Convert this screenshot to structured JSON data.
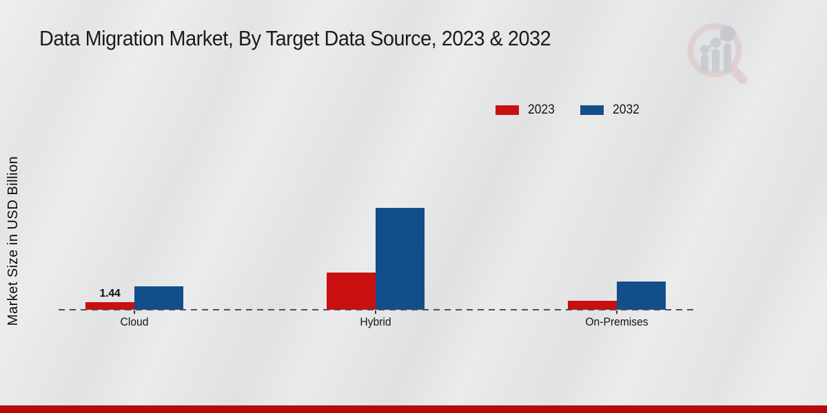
{
  "title": "Data Migration Market, By Target Data Source, 2023 & 2032",
  "colors": {
    "series_2023_red": "#c90f10",
    "series_2032_blue": "#124f8a",
    "footer_red": "#b70b0b",
    "title_text": "#1b1b1b",
    "dashed_baseline": "#4f4f4f"
  },
  "logo": {
    "name": "market-research-future-watermark"
  },
  "chart_data": {
    "type": "bar",
    "title": "Data Migration Market, By Target Data Source, 2023 & 2032",
    "xlabel": "",
    "ylabel": "Market Size in USD Billion",
    "categories": [
      "Cloud",
      "Hybrid",
      "On-Premises"
    ],
    "series": [
      {
        "name": "2023",
        "color": "#c90f10",
        "values": [
          1.44,
          7.05,
          1.74
        ]
      },
      {
        "name": "2032",
        "color": "#124f8a",
        "values": [
          4.45,
          19.3,
          5.3
        ]
      }
    ],
    "annotations": [
      {
        "series": "2023",
        "category": "Cloud",
        "text": "1.44"
      }
    ],
    "ylim": [
      0,
      20
    ],
    "grid": false,
    "y_axis_ticks_visible": false,
    "baseline_style": "dashed",
    "legend_position": "top-right"
  }
}
